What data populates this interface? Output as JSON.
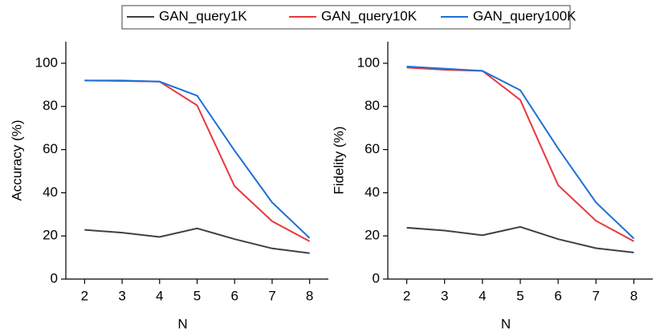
{
  "chart_data": [
    {
      "type": "line",
      "xlabel": "N",
      "ylabel": "Accuracy (%)",
      "x": [
        2,
        3,
        4,
        5,
        6,
        7,
        8
      ],
      "xlim": [
        1.5,
        8.5
      ],
      "xticks": [
        2,
        3,
        4,
        5,
        6,
        7,
        8
      ],
      "ylim": [
        0,
        110
      ],
      "yticks": [
        0,
        20,
        40,
        60,
        80,
        100
      ],
      "series": [
        {
          "name": "GAN_query1K",
          "color": "#404040",
          "values": [
            22.8,
            21.5,
            19.5,
            23.5,
            18.5,
            14.2,
            12
          ]
        },
        {
          "name": "GAN_query10K",
          "color": "#e8383d",
          "values": [
            92,
            91.8,
            91.5,
            80.5,
            43,
            26.8,
            17.5
          ]
        },
        {
          "name": "GAN_query100K",
          "color": "#1f6fd6",
          "values": [
            92,
            92,
            91.5,
            85,
            59.5,
            35.5,
            19
          ]
        }
      ]
    },
    {
      "type": "line",
      "xlabel": "N",
      "ylabel": "Fidelity (%)",
      "x": [
        2,
        3,
        4,
        5,
        6,
        7,
        8
      ],
      "xlim": [
        1.5,
        8.5
      ],
      "xticks": [
        2,
        3,
        4,
        5,
        6,
        7,
        8
      ],
      "ylim": [
        0,
        110
      ],
      "yticks": [
        0,
        20,
        40,
        60,
        80,
        100
      ],
      "series": [
        {
          "name": "GAN_query1K",
          "color": "#404040",
          "values": [
            23.8,
            22.5,
            20.3,
            24.2,
            18.5,
            14.3,
            12.3
          ]
        },
        {
          "name": "GAN_query10K",
          "color": "#e8383d",
          "values": [
            98,
            97,
            96.5,
            83,
            43.5,
            27,
            17.5
          ]
        },
        {
          "name": "GAN_query100K",
          "color": "#1f6fd6",
          "values": [
            98.5,
            97.5,
            96.5,
            87.5,
            60.5,
            35.5,
            18.8
          ]
        }
      ]
    }
  ]
}
